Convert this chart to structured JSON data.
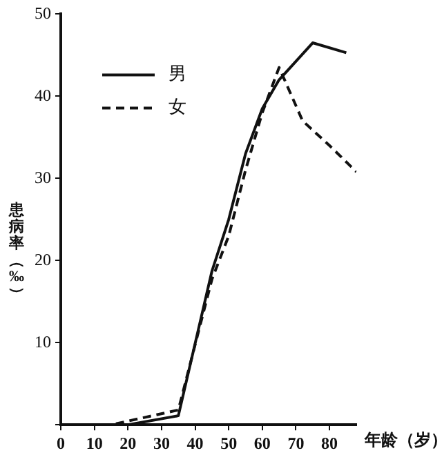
{
  "chart_data": {
    "type": "line",
    "xlabel": "年龄（岁）",
    "ylabel": "患病率（‰）",
    "xlim": [
      0,
      88
    ],
    "xticks": [
      0,
      10,
      20,
      30,
      40,
      50,
      60,
      70,
      80
    ],
    "ylim": [
      0,
      50
    ],
    "yticks": [
      {
        "value": 0,
        "label": null
      },
      10,
      20,
      30,
      40,
      50
    ],
    "grid": false,
    "legend": "top left",
    "marker": "none",
    "series": [
      {
        "name": "男",
        "color": "#111111",
        "line_style": "solid",
        "x": [
          0,
          10,
          20,
          35,
          45,
          50,
          55,
          60,
          65,
          75,
          85
        ],
        "values": [
          0,
          0,
          0,
          1.1,
          18.7,
          25,
          33,
          38.5,
          42,
          46.5,
          45.3
        ]
      },
      {
        "name": "女",
        "color": "#111111",
        "line_style": "dashed",
        "x": [
          0,
          15,
          35,
          45,
          50,
          55,
          60,
          65,
          72,
          80,
          88
        ],
        "values": [
          0,
          0,
          1.8,
          17.7,
          23,
          31,
          38,
          43.5,
          37,
          34,
          30.8
        ]
      }
    ]
  }
}
